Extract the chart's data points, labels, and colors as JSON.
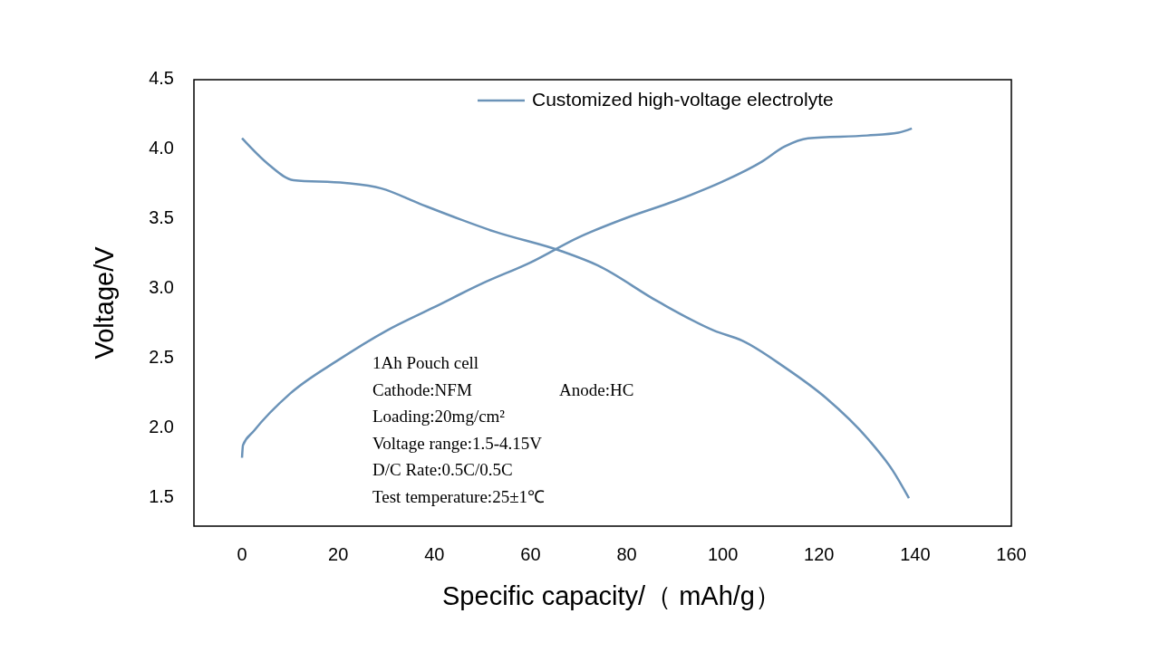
{
  "chart_data": {
    "type": "line",
    "xlabel": "Specific capacity/（ mAh/g）",
    "ylabel": "Voltage/V",
    "xlim": [
      -10,
      160
    ],
    "xticks": [
      0,
      20,
      40,
      60,
      80,
      100,
      120,
      140,
      160
    ],
    "ylim": [
      1.3,
      4.5
    ],
    "yticks": [
      1.5,
      {
        "value": 2,
        "label": "2.0"
      },
      2.5,
      {
        "value": 3,
        "label": "3.0"
      },
      3.5,
      {
        "value": 4,
        "label": "4.0"
      },
      4.5
    ],
    "grid": false,
    "legend": "top",
    "marker": "none",
    "line_style": "solid",
    "series": [
      {
        "name": "Customized high-voltage electrolyte",
        "color": "#6b93b8",
        "x": [
          0,
          0.2,
          2.4,
          10,
          20,
          30,
          40,
          50,
          60,
          70,
          80,
          90,
          100,
          108,
          112.8,
          117.7,
          130,
          136.5,
          139.3
        ],
        "values": [
          1.79,
          1.88,
          1.98,
          2.25,
          2.49,
          2.7,
          2.87,
          3.04,
          3.19,
          3.37,
          3.51,
          3.63,
          3.77,
          3.91,
          4.02,
          4.08,
          4.1,
          4.12,
          4.15
        ]
      },
      {
        "color": "#6b93b8",
        "x": [
          0,
          5.6,
          10.7,
          21.4,
          29,
          37,
          52.6,
          66.5,
          73.9,
          86.5,
          98.3,
          104,
          112.8,
          121.4,
          130.3,
          135.3,
          138.7
        ],
        "values": [
          4.08,
          3.89,
          3.78,
          3.76,
          3.72,
          3.61,
          3.41,
          3.27,
          3.17,
          2.91,
          2.7,
          2.63,
          2.44,
          2.22,
          1.92,
          1.7,
          1.5
        ]
      }
    ],
    "annotations": [
      "1Ah Pouch cell",
      "Cathode:NFM",
      "Anode:HC",
      "Loading:20mg/cm²",
      "Voltage range:1.5-4.15V",
      "D/C Rate:0.5C/0.5C",
      "Test temperature:25±1℃"
    ]
  }
}
